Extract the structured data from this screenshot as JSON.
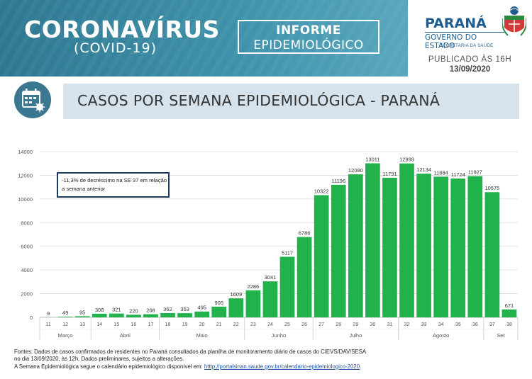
{
  "header": {
    "title": "CORONAVÍRUS",
    "subtitle": "(COVID-19)",
    "informe_line1": "INFORME",
    "informe_line2": "EPIDEMIOLÓGICO",
    "gov_name": "PARANÁ",
    "gov_line": "GOVERNO DO ESTADO",
    "gov_secretaria": "SECRETARIA DA SAÚDE",
    "published_label": "PUBLICADO ÀS 16H",
    "published_date": "13/09/2020",
    "colors": {
      "header_bg": "#3a8aa4",
      "gov_blue": "#1f5c8f"
    }
  },
  "section": {
    "icon": "calendar-virus-icon",
    "title": "CASOS POR SEMANA EPIDEMIOLÓGICA - PARANÁ"
  },
  "chart_data": {
    "type": "bar",
    "title": "",
    "xlabel": "",
    "ylabel": "",
    "ylim": [
      0,
      14000
    ],
    "yticks": [
      "0",
      "2000",
      "4000",
      "6000",
      "8000",
      "10000",
      "12000",
      "14000"
    ],
    "grid": true,
    "bar_color": "#22b24c",
    "categories": [
      "11",
      "12",
      "13",
      "14",
      "15",
      "16",
      "17",
      "18",
      "19",
      "20",
      "21",
      "22",
      "23",
      "24",
      "25",
      "26",
      "27",
      "28",
      "29",
      "30",
      "31",
      "32",
      "33",
      "34",
      "35",
      "36",
      "37",
      "38"
    ],
    "values": [
      9,
      49,
      95,
      308,
      321,
      220,
      268,
      362,
      353,
      495,
      905,
      1609,
      2286,
      3041,
      5117,
      6786,
      10322,
      11196,
      12080,
      13011,
      11791,
      12999,
      12134,
      11884,
      11724,
      11927,
      10575,
      671
    ],
    "value_labels": [
      "9",
      "49",
      "95",
      "308",
      "321",
      "220",
      "268",
      "362",
      "353",
      "495",
      "905",
      "1609",
      "2286",
      "3041",
      "5117",
      "6786",
      "10322",
      "11196",
      "12080",
      "13011",
      "11791",
      "12999",
      "12134",
      "11884",
      "11724",
      "11927",
      "10575",
      "671"
    ],
    "month_groups": [
      {
        "label": "Março",
        "start": 0,
        "end": 2
      },
      {
        "label": "Abril",
        "start": 3,
        "end": 6
      },
      {
        "label": "Maio",
        "start": 7,
        "end": 11
      },
      {
        "label": "Junho",
        "start": 12,
        "end": 15
      },
      {
        "label": "Julho",
        "start": 16,
        "end": 20
      },
      {
        "label": "Agosto",
        "start": 21,
        "end": 25
      },
      {
        "label": "Set",
        "start": 26,
        "end": 27
      }
    ],
    "annotation": "-11,3% de decréscimo na SE 37 em relação a semana anterior"
  },
  "footer": {
    "line1": "Fontes: Dados de casos confirmados de residentes no Paraná consultados da planilha de monitoramento diário de casos do CIEVS/DAV/SESA",
    "line2": "no dia 13/09/2020, às 12h. Dados preliminares, sujeitos a alterações.",
    "line3_prefix": "A Semana Epidemiológica  segue o calendário epidemiológico disponível em: ",
    "line3_link": "htttp://portalsinan.saude.gov.br/calendario-epidemiologico-2020",
    "line3_suffix": "."
  }
}
